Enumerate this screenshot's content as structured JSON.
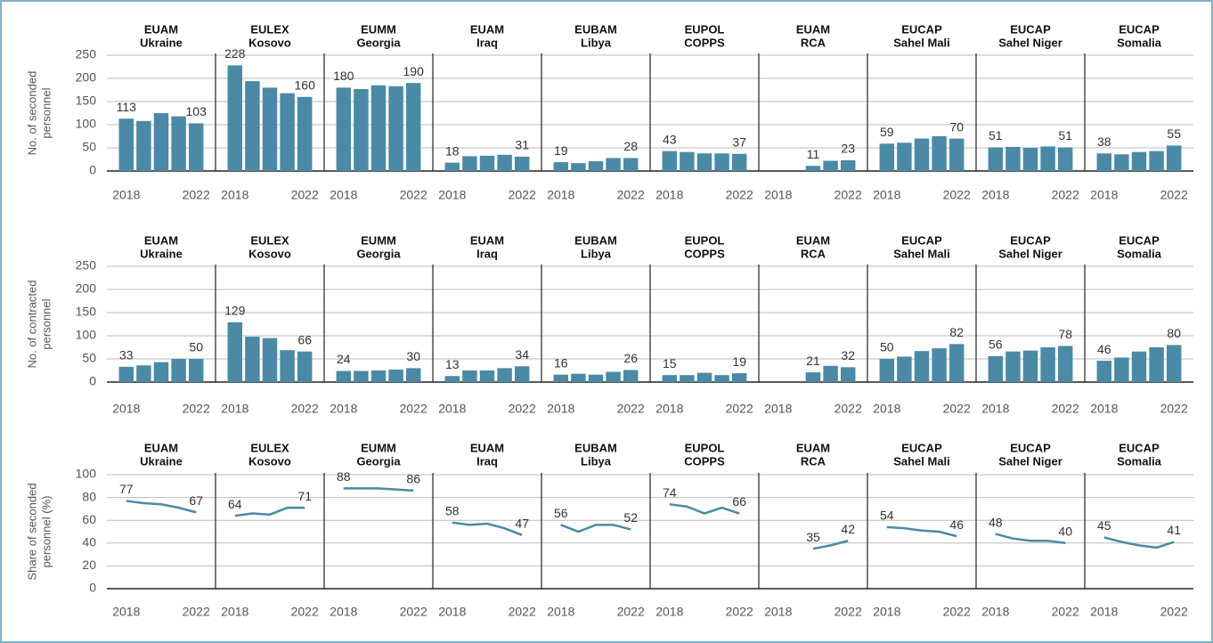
{
  "chart_data": [
    {
      "type": "bar",
      "ylabel": [
        "No. of seconded",
        "personnel"
      ],
      "ylim": [
        0,
        250
      ],
      "yticks": [
        0,
        50,
        100,
        150,
        200,
        250
      ],
      "grid": true,
      "color": "#4a8aa6",
      "data_labels": "ends",
      "categories": [
        "2018",
        null,
        null,
        null,
        "2022"
      ],
      "panels": [
        {
          "title": [
            "EUAM",
            "Ukraine"
          ],
          "values": [
            113,
            108,
            125,
            118,
            103
          ]
        },
        {
          "title": [
            "EULEX",
            "Kosovo"
          ],
          "values": [
            228,
            194,
            180,
            168,
            160
          ]
        },
        {
          "title": [
            "EUMM",
            "Georgia"
          ],
          "values": [
            180,
            177,
            185,
            183,
            190
          ]
        },
        {
          "title": [
            "EUAM",
            "Iraq"
          ],
          "values": [
            18,
            32,
            33,
            35,
            31
          ]
        },
        {
          "title": [
            "EUBAM",
            "Libya"
          ],
          "values": [
            19,
            17,
            21,
            28,
            28
          ]
        },
        {
          "title": [
            "EUPOL",
            "COPPS"
          ],
          "values": [
            43,
            41,
            38,
            38,
            37
          ]
        },
        {
          "title": [
            "EUAM",
            "RCA"
          ],
          "values": [
            null,
            null,
            11,
            22,
            23
          ]
        },
        {
          "title": [
            "EUCAP",
            "Sahel Mali"
          ],
          "values": [
            59,
            61,
            70,
            75,
            70
          ]
        },
        {
          "title": [
            "EUCAP",
            "Sahel Niger"
          ],
          "values": [
            51,
            52,
            50,
            53,
            51
          ]
        },
        {
          "title": [
            "EUCAP",
            "Somalia"
          ],
          "values": [
            38,
            36,
            41,
            43,
            55
          ]
        }
      ]
    },
    {
      "type": "bar",
      "ylabel": [
        "No. of contracted",
        "personnel"
      ],
      "ylim": [
        0,
        250
      ],
      "yticks": [
        0,
        50,
        100,
        150,
        200,
        250
      ],
      "grid": true,
      "color": "#4a8aa6",
      "data_labels": "ends",
      "categories": [
        "2018",
        null,
        null,
        null,
        "2022"
      ],
      "panels": [
        {
          "title": [
            "EUAM",
            "Ukraine"
          ],
          "values": [
            33,
            36,
            43,
            50,
            50
          ]
        },
        {
          "title": [
            "EULEX",
            "Kosovo"
          ],
          "values": [
            129,
            98,
            95,
            69,
            66
          ]
        },
        {
          "title": [
            "EUMM",
            "Georgia"
          ],
          "values": [
            24,
            24,
            25,
            27,
            30
          ]
        },
        {
          "title": [
            "EUAM",
            "Iraq"
          ],
          "values": [
            13,
            25,
            25,
            30,
            34
          ]
        },
        {
          "title": [
            "EUBAM",
            "Libya"
          ],
          "values": [
            16,
            18,
            16,
            22,
            26
          ]
        },
        {
          "title": [
            "EUPOL",
            "COPPS"
          ],
          "values": [
            15,
            15,
            20,
            15,
            19
          ]
        },
        {
          "title": [
            "EUAM",
            "RCA"
          ],
          "values": [
            null,
            null,
            21,
            35,
            32
          ]
        },
        {
          "title": [
            "EUCAP",
            "Sahel Mali"
          ],
          "values": [
            50,
            55,
            67,
            73,
            82
          ]
        },
        {
          "title": [
            "EUCAP",
            "Sahel Niger"
          ],
          "values": [
            56,
            66,
            68,
            75,
            78
          ]
        },
        {
          "title": [
            "EUCAP",
            "Somalia"
          ],
          "values": [
            46,
            53,
            66,
            75,
            80
          ]
        }
      ]
    },
    {
      "type": "line",
      "ylabel": [
        "Share of seconded",
        "personnel (%)"
      ],
      "ylim": [
        0,
        100
      ],
      "yticks": [
        0,
        20,
        40,
        60,
        80,
        100
      ],
      "grid": true,
      "color": "#4a8aa6",
      "data_labels": "ends",
      "categories": [
        "2018",
        null,
        null,
        null,
        "2022"
      ],
      "panels": [
        {
          "title": [
            "EUAM",
            "Ukraine"
          ],
          "values": [
            77,
            75,
            74,
            71,
            67
          ]
        },
        {
          "title": [
            "EULEX",
            "Kosovo"
          ],
          "values": [
            64,
            66,
            65,
            71,
            71
          ]
        },
        {
          "title": [
            "EUMM",
            "Georgia"
          ],
          "values": [
            88,
            88,
            88,
            87,
            86
          ]
        },
        {
          "title": [
            "EUAM",
            "Iraq"
          ],
          "values": [
            58,
            56,
            57,
            53,
            47
          ]
        },
        {
          "title": [
            "EUBAM",
            "Libya"
          ],
          "values": [
            56,
            50,
            56,
            56,
            52
          ]
        },
        {
          "title": [
            "EUPOL",
            "COPPS"
          ],
          "values": [
            74,
            72,
            66,
            71,
            66
          ]
        },
        {
          "title": [
            "EUAM",
            "RCA"
          ],
          "values": [
            null,
            null,
            35,
            38,
            42
          ]
        },
        {
          "title": [
            "EUCAP",
            "Sahel Mali"
          ],
          "values": [
            54,
            53,
            51,
            50,
            46
          ]
        },
        {
          "title": [
            "EUCAP",
            "Sahel Niger"
          ],
          "values": [
            48,
            44,
            42,
            42,
            40
          ]
        },
        {
          "title": [
            "EUCAP",
            "Somalia"
          ],
          "values": [
            45,
            41,
            38,
            36,
            41
          ]
        }
      ]
    }
  ]
}
